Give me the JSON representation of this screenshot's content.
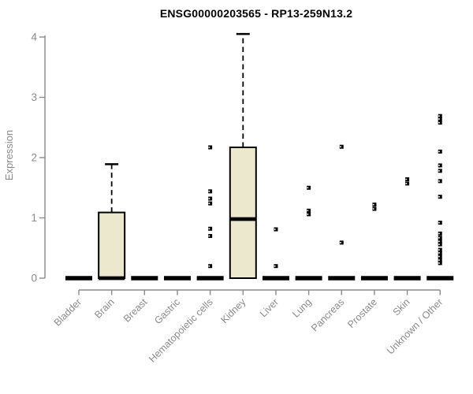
{
  "chart_data": {
    "type": "boxplot",
    "title": "ENSG00000203565 - RP13-259N13.2",
    "ylabel": "Expression",
    "ylim": [
      0,
      4
    ],
    "yticks": [
      0,
      1,
      2,
      3,
      4
    ],
    "colors": {
      "box_fill": "#ece8cd",
      "box_stroke": "#000000",
      "axis": "#8a8a8a",
      "tick_label": "#8a8a8a",
      "title": "#000000"
    },
    "categories": [
      {
        "label": "Bladder",
        "median": 0,
        "q1": 0,
        "q3": 0,
        "whisker_high": 0,
        "outliers": []
      },
      {
        "label": "Brain",
        "median": 0,
        "q1": 0,
        "q3": 1.09,
        "whisker_high": 1.89,
        "outliers": []
      },
      {
        "label": "Breast",
        "median": 0,
        "q1": 0,
        "q3": 0,
        "whisker_high": 0,
        "outliers": []
      },
      {
        "label": "Gastric",
        "median": 0,
        "q1": 0,
        "q3": 0,
        "whisker_high": 0,
        "outliers": []
      },
      {
        "label": "Hematopoietic cells",
        "median": 0,
        "q1": 0,
        "q3": 0,
        "whisker_high": 0,
        "outliers": [
          2.17,
          1.44,
          1.32,
          1.24,
          0.82,
          0.7,
          0.2
        ]
      },
      {
        "label": "Kidney",
        "median": 0.98,
        "q1": 0,
        "q3": 2.17,
        "whisker_high": 4.05,
        "outliers": []
      },
      {
        "label": "Liver",
        "median": 0,
        "q1": 0,
        "q3": 0,
        "whisker_high": 0,
        "outliers": [
          0.81,
          0.2
        ]
      },
      {
        "label": "Lung",
        "median": 0,
        "q1": 0,
        "q3": 0,
        "whisker_high": 0,
        "outliers": [
          1.5,
          1.12,
          1.06
        ]
      },
      {
        "label": "Pancreas",
        "median": 0,
        "q1": 0,
        "q3": 0,
        "whisker_high": 0,
        "outliers": [
          2.18,
          0.59
        ]
      },
      {
        "label": "Prostate",
        "median": 0,
        "q1": 0,
        "q3": 0,
        "whisker_high": 0,
        "outliers": [
          1.22,
          1.15
        ]
      },
      {
        "label": "Skin",
        "median": 0,
        "q1": 0,
        "q3": 0,
        "whisker_high": 0,
        "outliers": [
          1.64,
          1.57
        ]
      },
      {
        "label": "Unknown / Other",
        "median": 0,
        "q1": 0,
        "q3": 0,
        "whisker_high": 0,
        "outliers": [
          2.69,
          2.64,
          2.58,
          2.1,
          1.87,
          1.78,
          1.61,
          1.35,
          0.92,
          0.74,
          0.67,
          0.61,
          0.56,
          0.47,
          0.42,
          0.36,
          0.3,
          0.25
        ]
      }
    ]
  }
}
